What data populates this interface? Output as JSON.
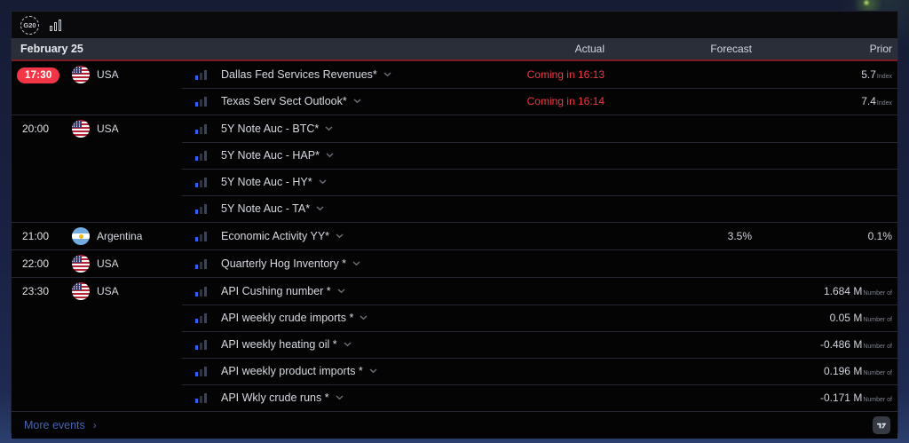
{
  "toolbar": {
    "g20_label": "G20"
  },
  "header": {
    "date": "February 25",
    "columns": {
      "actual": "Actual",
      "forecast": "Forecast",
      "prior": "Prior"
    }
  },
  "groups": [
    {
      "time": "17:30",
      "highlight": true,
      "country": "USA",
      "flag": "usa",
      "events": [
        {
          "name": "Dallas Fed Services Revenues*",
          "actual": "Coming in 16:13",
          "pending": true,
          "forecast": "",
          "prior": {
            "value": "5.7",
            "suffix": "Index"
          }
        },
        {
          "name": "Texas Serv Sect Outlook*",
          "actual": "Coming in 16:14",
          "pending": true,
          "forecast": "",
          "prior": {
            "value": "7.4",
            "suffix": "Index"
          }
        }
      ]
    },
    {
      "time": "20:00",
      "highlight": false,
      "country": "USA",
      "flag": "usa",
      "events": [
        {
          "name": "5Y Note Auc - BTC*",
          "actual": "",
          "forecast": "",
          "prior": null
        },
        {
          "name": "5Y Note Auc - HAP*",
          "actual": "",
          "forecast": "",
          "prior": null
        },
        {
          "name": "5Y Note Auc - HY*",
          "actual": "",
          "forecast": "",
          "prior": null
        },
        {
          "name": "5Y Note Auc - TA*",
          "actual": "",
          "forecast": "",
          "prior": null
        }
      ]
    },
    {
      "time": "21:00",
      "highlight": false,
      "country": "Argentina",
      "flag": "argentina",
      "events": [
        {
          "name": "Economic Activity YY*",
          "actual": "",
          "forecast": "3.5%",
          "prior": {
            "value": "0.1%",
            "suffix": ""
          }
        }
      ]
    },
    {
      "time": "22:00",
      "highlight": false,
      "country": "USA",
      "flag": "usa",
      "events": [
        {
          "name": "Quarterly Hog Inventory *",
          "actual": "",
          "forecast": "",
          "prior": null
        }
      ]
    },
    {
      "time": "23:30",
      "highlight": false,
      "country": "USA",
      "flag": "usa",
      "events": [
        {
          "name": "API Cushing number *",
          "actual": "",
          "forecast": "",
          "prior": {
            "value": "1.684 M",
            "suffix": "Number of"
          }
        },
        {
          "name": "API weekly crude imports *",
          "actual": "",
          "forecast": "",
          "prior": {
            "value": "0.05 M",
            "suffix": "Number of"
          }
        },
        {
          "name": "API weekly heating oil *",
          "actual": "",
          "forecast": "",
          "prior": {
            "value": "-0.486 M",
            "suffix": "Number of"
          }
        },
        {
          "name": "API weekly product imports *",
          "actual": "",
          "forecast": "",
          "prior": {
            "value": "0.196 M",
            "suffix": "Number of"
          }
        },
        {
          "name": "API Wkly crude runs *",
          "actual": "",
          "forecast": "",
          "prior": {
            "value": "-0.171 M",
            "suffix": "Number of"
          }
        }
      ]
    }
  ],
  "footer": {
    "more_events_label": "More events",
    "chevron": "›"
  },
  "colors": {
    "accent_red": "#f23645",
    "current_time_line": "#7c1a23",
    "link_blue": "#4664b4",
    "importance_blue": "#2962ff",
    "header_bg": "#2a2e39",
    "widget_bg": "#040405",
    "page_bg": "#1a2142"
  }
}
